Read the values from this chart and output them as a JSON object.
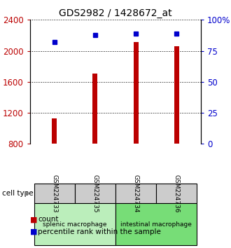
{
  "title": "GDS2982 / 1428672_at",
  "samples": [
    "GSM224733",
    "GSM224735",
    "GSM224734",
    "GSM224736"
  ],
  "counts": [
    1130,
    1710,
    2110,
    2060
  ],
  "percentile_ranks": [
    82,
    88,
    89,
    89
  ],
  "ylim_left": [
    800,
    2400
  ],
  "ylim_right": [
    0,
    100
  ],
  "yticks_left": [
    800,
    1200,
    1600,
    2000,
    2400
  ],
  "yticks_right": [
    0,
    25,
    50,
    75,
    100
  ],
  "ytick_labels_right": [
    "0",
    "25",
    "50",
    "75",
    "100%"
  ],
  "bar_color": "#bb0000",
  "dot_color": "#0000cc",
  "group1_label": "splenic macrophage",
  "group2_label": "intestinal macrophage",
  "group1_color": "#bbeebb",
  "group2_color": "#77dd77",
  "sample_bg_color": "#cccccc",
  "legend_count_color": "#bb0000",
  "legend_pct_color": "#0000cc",
  "bar_width": 0.12,
  "x_positions": [
    0,
    1,
    2,
    3
  ]
}
